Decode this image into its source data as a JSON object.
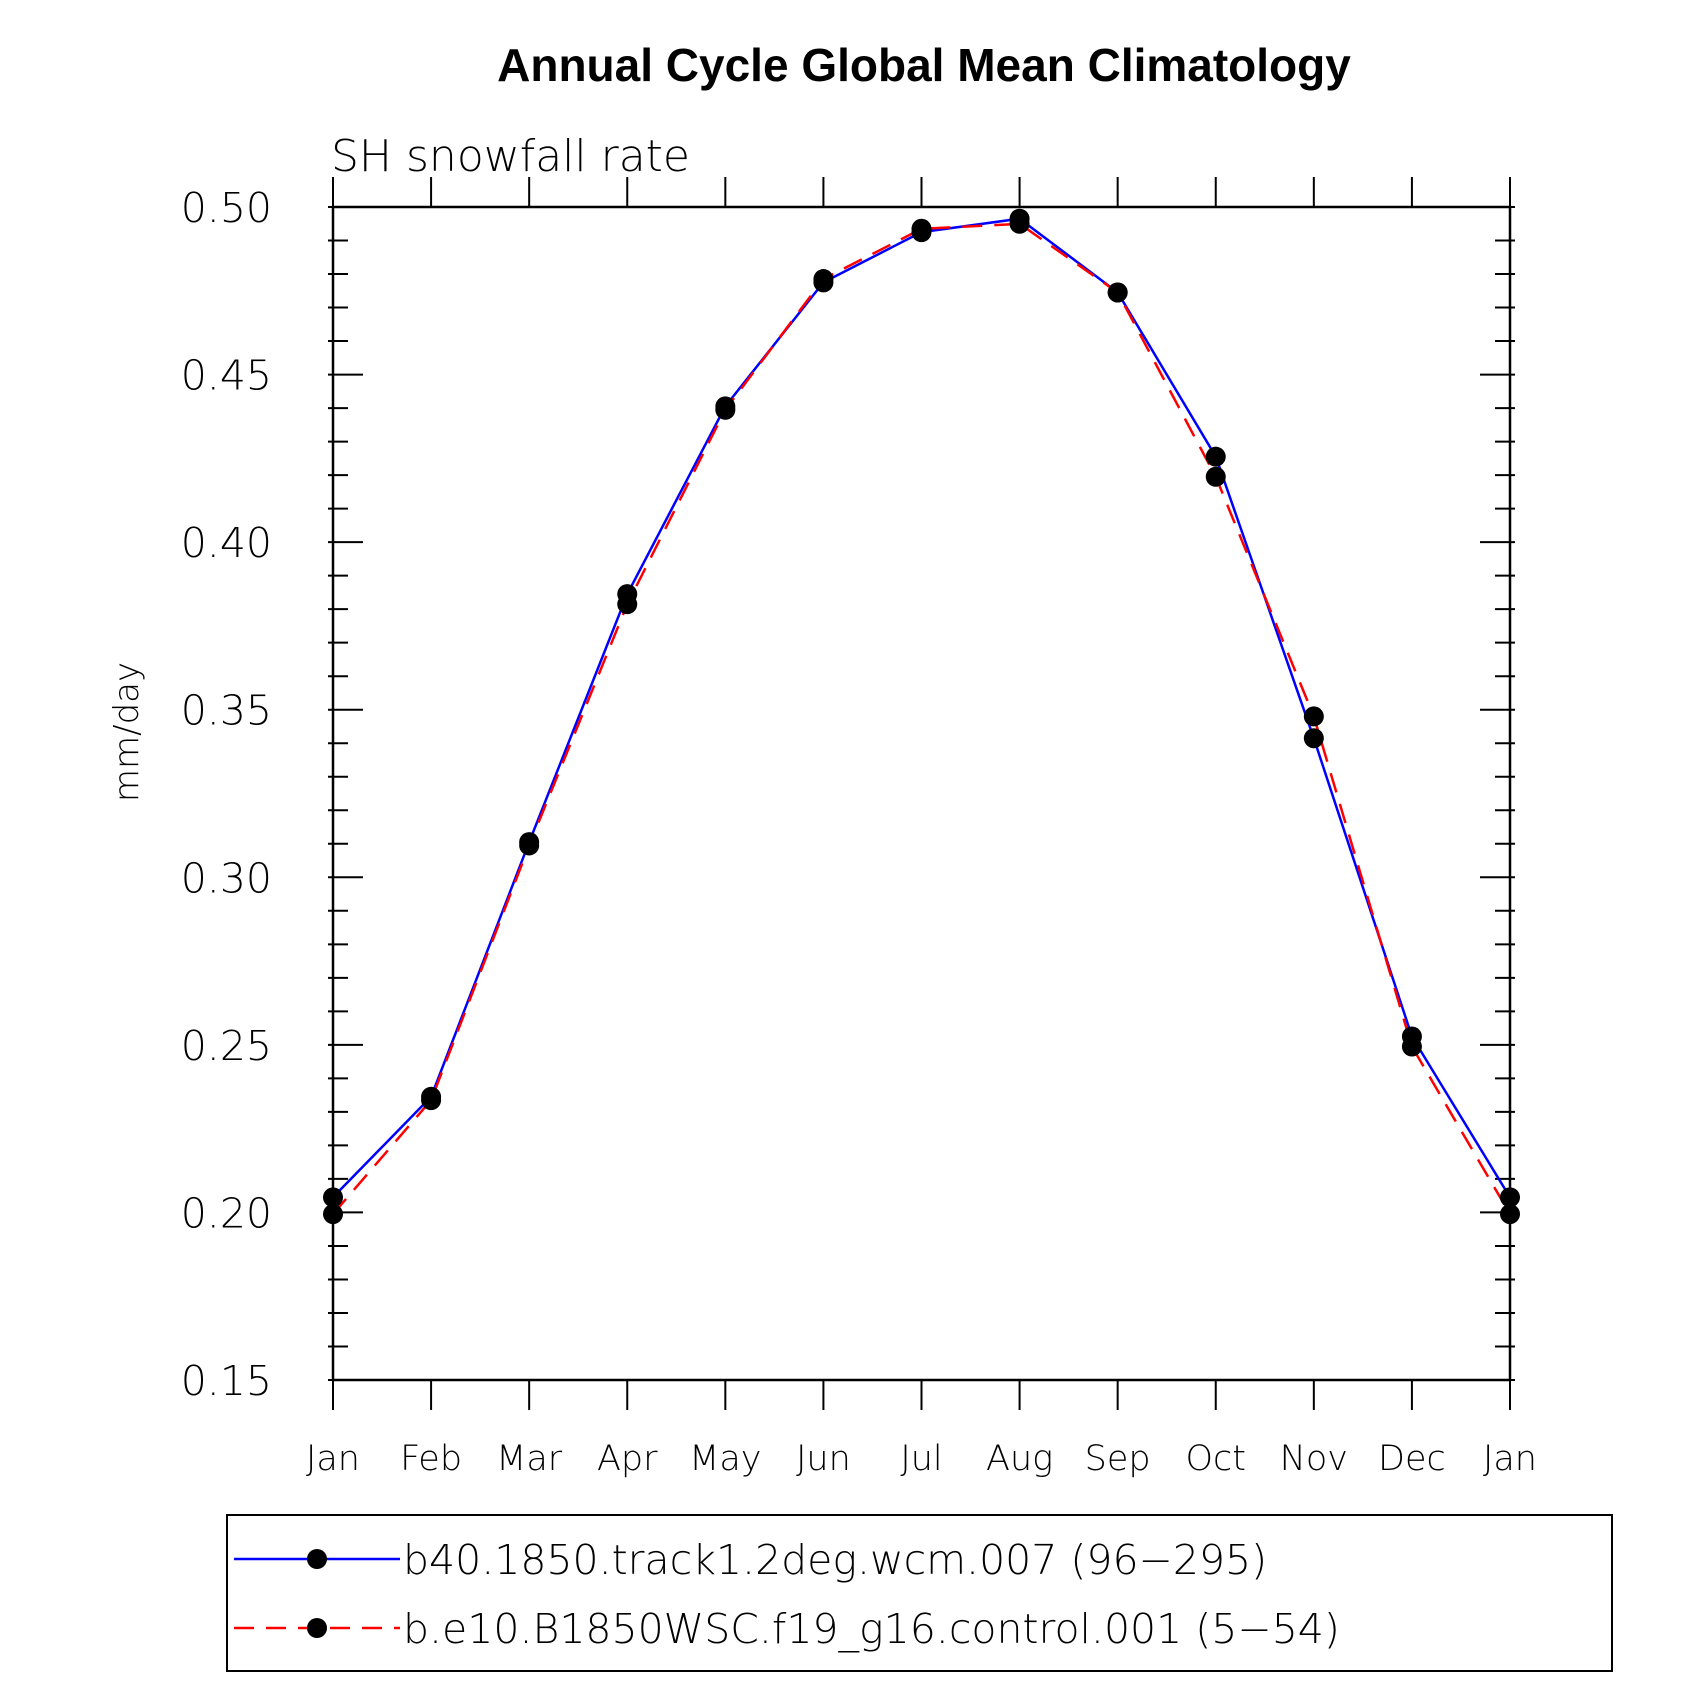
{
  "chart_data": {
    "type": "line",
    "title": "Annual Cycle Global Mean Climatology",
    "subtitle": "SH snowfall rate",
    "ylabel": "mm/day",
    "xlabel": "",
    "categories": [
      "Jan",
      "Feb",
      "Mar",
      "Apr",
      "May",
      "Jun",
      "Jul",
      "Aug",
      "Sep",
      "Oct",
      "Nov",
      "Dec",
      "Jan"
    ],
    "ylim": [
      0.15,
      0.5
    ],
    "yticks": [
      "0.15",
      "0.20",
      "0.25",
      "0.30",
      "0.35",
      "0.40",
      "0.45",
      "0.50"
    ],
    "grid": false,
    "legend_position": "bottom",
    "series": [
      {
        "name": "b40.1850.track1.2deg.wcm.007 (96−295)",
        "color": "#0000ff",
        "line_style": "solid",
        "values": [
          0.2045,
          0.2345,
          0.3105,
          0.3845,
          0.4405,
          0.4775,
          0.4925,
          0.4965,
          0.4745,
          0.4255,
          0.3415,
          0.2525,
          0.2045
        ]
      },
      {
        "name": "b.e10.B1850WSC.f19_g16.control.001 (5−54)",
        "color": "#ff0000",
        "line_style": "dashed",
        "values": [
          0.1995,
          0.2335,
          0.3095,
          0.3815,
          0.4395,
          0.4785,
          0.4935,
          0.495,
          0.4745,
          0.4195,
          0.348,
          0.2495,
          0.1995
        ]
      }
    ]
  }
}
